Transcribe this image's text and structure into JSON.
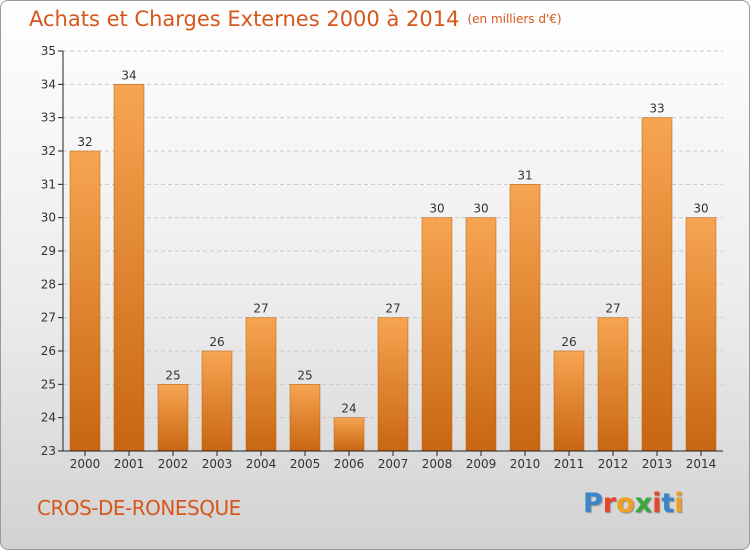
{
  "colors": {
    "title": "#d5571b",
    "bar_light": "#f7a551",
    "bar_dark": "#c86612",
    "axis": "#222222",
    "grid": "#c8c8c8"
  },
  "header": {
    "title": "Achats et Charges Externes 2000 à 2014",
    "subtitle": "(en milliers d'€)"
  },
  "footer": {
    "commune": "CROS-DE-RONESQUE",
    "logo_letters": [
      {
        "ch": "P",
        "color": "#3a86c8"
      },
      {
        "ch": "r",
        "color": "#e8452c"
      },
      {
        "ch": "o",
        "color": "#f0a020"
      },
      {
        "ch": "x",
        "color": "#3aa83a"
      },
      {
        "ch": "i",
        "color": "#e8452c"
      },
      {
        "ch": "t",
        "color": "#3a86c8"
      },
      {
        "ch": "i",
        "color": "#f0a020"
      }
    ]
  },
  "chart_data": {
    "type": "bar",
    "categories": [
      "2000",
      "2001",
      "2002",
      "2003",
      "2004",
      "2005",
      "2006",
      "2007",
      "2008",
      "2009",
      "2010",
      "2011",
      "2012",
      "2013",
      "2014"
    ],
    "values": [
      32,
      34,
      25,
      26,
      27,
      25,
      24,
      27,
      30,
      30,
      31,
      26,
      27,
      33,
      30
    ],
    "ylim": [
      23,
      35
    ],
    "yticks": [
      23,
      24,
      25,
      26,
      27,
      28,
      29,
      30,
      31,
      32,
      33,
      34,
      35
    ],
    "grid": true,
    "data_labels": true
  }
}
